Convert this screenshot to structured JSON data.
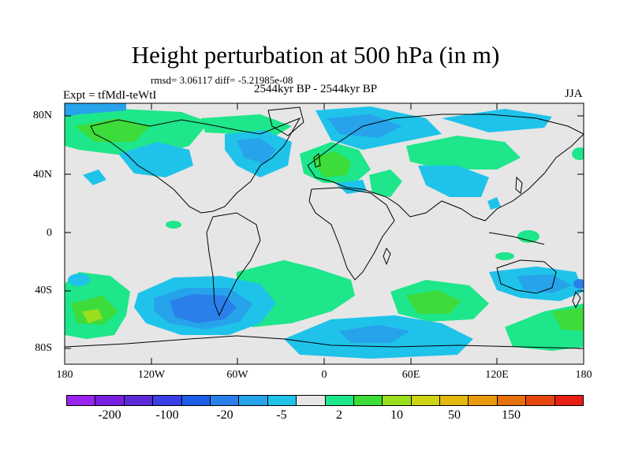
{
  "title": "Height perturbation at 500 hPa (in m)",
  "stats_line": "rmsd= 3.06117 diff= -5.21985e-08",
  "period": "2544kyr BP - 2544kyr BP",
  "experiment": "Expt = tfMdI-teWtI",
  "season": "JJA",
  "map": {
    "background_color": "#e6e6e6",
    "lat_labels": [
      "80N",
      "40N",
      "0",
      "40S",
      "80S"
    ],
    "lon_labels": [
      "180",
      "120W",
      "60W",
      "0",
      "60E",
      "120E",
      "180"
    ]
  },
  "colorbar": {
    "colors": [
      "#9a25f0",
      "#7a1fe0",
      "#5a2ad6",
      "#3a3fe6",
      "#1f5ee8",
      "#2b7fea",
      "#26a3ea",
      "#1fc3ea",
      "#e6e6e6",
      "#1ee68a",
      "#3edc3a",
      "#9ade1e",
      "#cfd414",
      "#e2b90c",
      "#e89a0c",
      "#e8700c",
      "#e8460f",
      "#e81f16"
    ],
    "labels": [
      "-200",
      "-100",
      "-20",
      "-5",
      "2",
      "10",
      "50",
      "150"
    ]
  }
}
